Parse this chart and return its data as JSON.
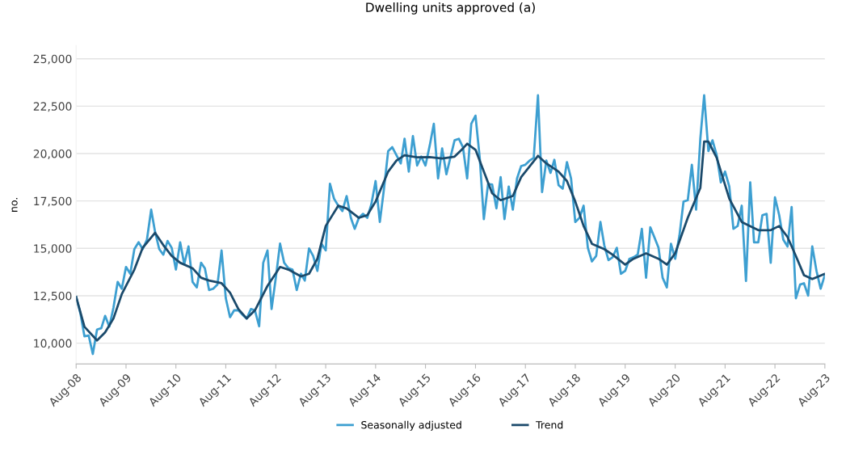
{
  "chart_data": {
    "type": "line",
    "title": "Dwelling units approved (a)",
    "ylabel": "no.",
    "x": [
      "2008-08",
      "2008-09",
      "2008-10",
      "2008-11",
      "2008-12",
      "2009-01",
      "2009-02",
      "2009-03",
      "2009-04",
      "2009-05",
      "2009-06",
      "2009-07",
      "2009-08",
      "2009-09",
      "2009-10",
      "2009-11",
      "2009-12",
      "2010-01",
      "2010-02",
      "2010-03",
      "2010-04",
      "2010-05",
      "2010-06",
      "2010-07",
      "2010-08",
      "2010-09",
      "2010-10",
      "2010-11",
      "2010-12",
      "2011-01",
      "2011-02",
      "2011-03",
      "2011-04",
      "2011-05",
      "2011-06",
      "2011-07",
      "2011-08",
      "2011-09",
      "2011-10",
      "2011-11",
      "2011-12",
      "2012-01",
      "2012-02",
      "2012-03",
      "2012-04",
      "2012-05",
      "2012-06",
      "2012-07",
      "2012-08",
      "2012-09",
      "2012-10",
      "2012-11",
      "2012-12",
      "2013-01",
      "2013-02",
      "2013-03",
      "2013-04",
      "2013-05",
      "2013-06",
      "2013-07",
      "2013-08",
      "2013-09",
      "2013-10",
      "2013-11",
      "2013-12",
      "2014-01",
      "2014-02",
      "2014-03",
      "2014-04",
      "2014-05",
      "2014-06",
      "2014-07",
      "2014-08",
      "2014-09",
      "2014-10",
      "2014-11",
      "2014-12",
      "2015-01",
      "2015-02",
      "2015-03",
      "2015-04",
      "2015-05",
      "2015-06",
      "2015-07",
      "2015-08",
      "2015-09",
      "2015-10",
      "2015-11",
      "2015-12",
      "2016-01",
      "2016-02",
      "2016-03",
      "2016-04",
      "2016-05",
      "2016-06",
      "2016-07",
      "2016-08",
      "2016-09",
      "2016-10",
      "2016-11",
      "2016-12",
      "2017-01",
      "2017-02",
      "2017-03",
      "2017-04",
      "2017-05",
      "2017-06",
      "2017-07",
      "2017-08",
      "2017-09",
      "2017-10",
      "2017-11",
      "2017-12",
      "2018-01",
      "2018-02",
      "2018-03",
      "2018-04",
      "2018-05",
      "2018-06",
      "2018-07",
      "2018-08",
      "2018-09",
      "2018-10",
      "2018-11",
      "2018-12",
      "2019-01",
      "2019-02",
      "2019-03",
      "2019-04",
      "2019-05",
      "2019-06",
      "2019-07",
      "2019-08",
      "2019-09",
      "2019-10",
      "2019-11",
      "2019-12",
      "2020-01",
      "2020-02",
      "2020-03",
      "2020-04",
      "2020-05",
      "2020-06",
      "2020-07",
      "2020-08",
      "2020-09",
      "2020-10",
      "2020-11",
      "2020-12",
      "2021-01",
      "2021-02",
      "2021-03",
      "2021-04",
      "2021-05",
      "2021-06",
      "2021-07",
      "2021-08",
      "2021-09",
      "2021-10",
      "2021-11",
      "2021-12",
      "2022-01",
      "2022-02",
      "2022-03",
      "2022-04",
      "2022-05",
      "2022-06",
      "2022-07",
      "2022-08",
      "2022-09",
      "2022-10",
      "2022-11",
      "2022-12",
      "2023-01",
      "2023-02",
      "2023-03",
      "2023-04",
      "2023-05",
      "2023-06",
      "2023-07",
      "2023-08"
    ],
    "series": [
      {
        "name": "Seasonally adjusted",
        "color": "#3d9fd1",
        "values": [
          12440,
          11580,
          10360,
          10400,
          9430,
          10720,
          10790,
          11440,
          10870,
          11870,
          13230,
          12870,
          14020,
          13660,
          14960,
          15320,
          14960,
          15460,
          17040,
          15890,
          14960,
          14670,
          15390,
          15030,
          13880,
          15320,
          14170,
          15100,
          13230,
          12940,
          14240,
          13950,
          12800,
          12870,
          13090,
          14890,
          12370,
          11370,
          11730,
          11730,
          11500,
          11300,
          11800,
          11730,
          10890,
          14240,
          14890,
          11800,
          13450,
          15250,
          14240,
          13950,
          13880,
          12800,
          13660,
          13300,
          15000,
          14600,
          13810,
          15250,
          14890,
          18410,
          17620,
          17250,
          16970,
          17760,
          16610,
          16030,
          16610,
          16820,
          16610,
          17330,
          18550,
          16390,
          18120,
          20130,
          20340,
          19910,
          19480,
          20780,
          19050,
          20920,
          19370,
          19840,
          19370,
          20420,
          21570,
          18690,
          20270,
          18910,
          19840,
          20700,
          20780,
          20340,
          18690,
          21570,
          22000,
          19770,
          16540,
          18400,
          18360,
          17110,
          18760,
          16540,
          18260,
          17040,
          18690,
          19340,
          19410,
          19630,
          19770,
          23070,
          17970,
          19630,
          18980,
          19670,
          18330,
          18150,
          19550,
          18690,
          16390,
          16610,
          17250,
          15030,
          14310,
          14600,
          16390,
          15170,
          14380,
          14530,
          15030,
          13660,
          13810,
          14450,
          14530,
          14670,
          16030,
          13450,
          16110,
          15600,
          15030,
          13450,
          12940,
          15240,
          14450,
          15670,
          17470,
          17540,
          19410,
          17040,
          20780,
          23070,
          20130,
          20700,
          19910,
          18480,
          19050,
          18260,
          16030,
          16180,
          17250,
          13280,
          18480,
          15320,
          15320,
          16750,
          16820,
          14240,
          17690,
          16750,
          15460,
          15100,
          17180,
          12370,
          13090,
          13160,
          12510,
          15100,
          13810,
          12870,
          13590
        ]
      },
      {
        "name": "Trend",
        "color": "#1b4a6b",
        "x": [
          "2008-08",
          "2008-10",
          "2009-01",
          "2009-03",
          "2009-05",
          "2009-07",
          "2009-10",
          "2009-12",
          "2010-03",
          "2010-05",
          "2010-07",
          "2010-09",
          "2010-12",
          "2011-02",
          "2011-04",
          "2011-07",
          "2011-09",
          "2011-11",
          "2012-01",
          "2012-03",
          "2012-06",
          "2012-09",
          "2012-11",
          "2013-02",
          "2013-04",
          "2013-06",
          "2013-08",
          "2013-11",
          "2014-01",
          "2014-04",
          "2014-06",
          "2014-08",
          "2014-11",
          "2015-01",
          "2015-03",
          "2015-06",
          "2015-09",
          "2015-12",
          "2016-03",
          "2016-05",
          "2016-06",
          "2016-08",
          "2016-10",
          "2016-12",
          "2017-02",
          "2017-05",
          "2017-07",
          "2017-11",
          "2018-01",
          "2018-04",
          "2018-06",
          "2018-08",
          "2018-10",
          "2018-12",
          "2019-03",
          "2019-05",
          "2019-08",
          "2019-10",
          "2020-01",
          "2020-04",
          "2020-06",
          "2020-08",
          "2020-11",
          "2021-02",
          "2021-03",
          "2021-04",
          "2021-06",
          "2021-09",
          "2021-12",
          "2022-04",
          "2022-07",
          "2022-09",
          "2022-11",
          "2023-01",
          "2023-03",
          "2023-05",
          "2023-08"
        ],
        "values": [
          12440,
          10860,
          10140,
          10570,
          11300,
          12590,
          13880,
          15030,
          15820,
          15170,
          14600,
          14240,
          13950,
          13450,
          13300,
          13160,
          12660,
          11800,
          11300,
          11730,
          13020,
          14020,
          13880,
          13520,
          13660,
          14450,
          16180,
          17250,
          17110,
          16610,
          16750,
          17470,
          19050,
          19630,
          19910,
          19800,
          19810,
          19740,
          19840,
          20270,
          20520,
          20200,
          19050,
          17900,
          17540,
          17760,
          18760,
          19880,
          19480,
          19050,
          18550,
          17470,
          16180,
          15240,
          14960,
          14670,
          14140,
          14450,
          14740,
          14450,
          14140,
          14740,
          16610,
          18190,
          20630,
          20630,
          19770,
          17620,
          16390,
          15960,
          15960,
          16180,
          15600,
          14600,
          13590,
          13380,
          13660
        ]
      }
    ],
    "xlim": [
      "2008-08",
      "2023-08"
    ],
    "xticks": [
      {
        "value": "2008-08",
        "label": "Aug-08"
      },
      {
        "value": "2009-08",
        "label": "Aug-09"
      },
      {
        "value": "2010-08",
        "label": "Aug-10"
      },
      {
        "value": "2011-08",
        "label": "Aug-11"
      },
      {
        "value": "2012-08",
        "label": "Aug-12"
      },
      {
        "value": "2013-08",
        "label": "Aug-13"
      },
      {
        "value": "2014-08",
        "label": "Aug-14"
      },
      {
        "value": "2015-08",
        "label": "Aug-15"
      },
      {
        "value": "2016-08",
        "label": "Aug-16"
      },
      {
        "value": "2017-08",
        "label": "Aug-17"
      },
      {
        "value": "2018-08",
        "label": "Aug-18"
      },
      {
        "value": "2019-08",
        "label": "Aug-19"
      },
      {
        "value": "2020-08",
        "label": "Aug-20"
      },
      {
        "value": "2021-08",
        "label": "Aug-21"
      },
      {
        "value": "2022-08",
        "label": "Aug-22"
      },
      {
        "value": "2023-08",
        "label": "Aug-23"
      }
    ],
    "ylim": [
      8900,
      25700
    ],
    "yticks": [
      {
        "value": 10000,
        "label": "10,000"
      },
      {
        "value": 12500,
        "label": "12,500"
      },
      {
        "value": 15000,
        "label": "15,000"
      },
      {
        "value": 17500,
        "label": "17,500"
      },
      {
        "value": 20000,
        "label": "20,000"
      },
      {
        "value": 22500,
        "label": "22,500"
      },
      {
        "value": 25000,
        "label": "25,000"
      }
    ],
    "grid": "y",
    "legend": "bottom",
    "marker": "none",
    "line_style": "solid"
  }
}
